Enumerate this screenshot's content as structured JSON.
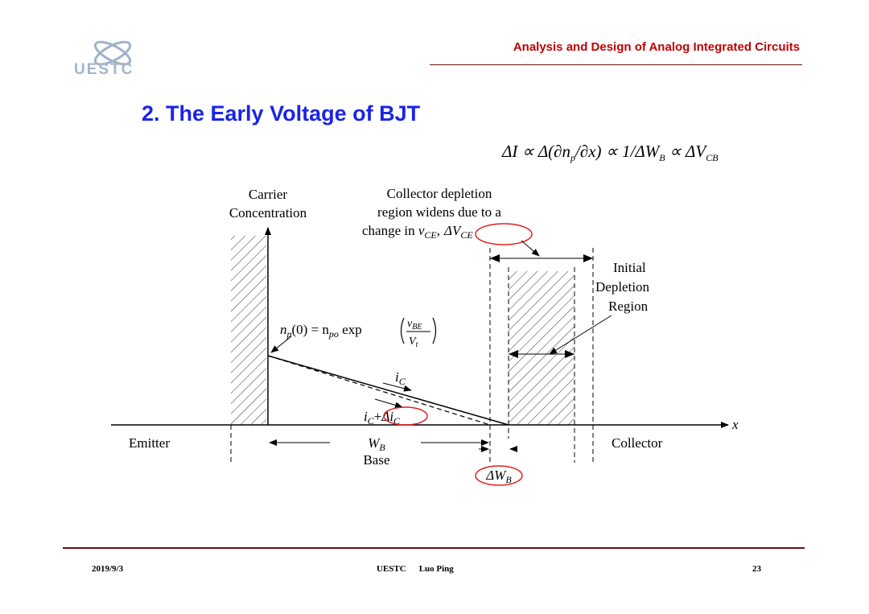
{
  "header": {
    "logo_text": "UESTC",
    "course_title": "Analysis and Design of Analog Integrated Circuits"
  },
  "slide": {
    "heading": "2. The Early Voltage of BJT",
    "formula": {
      "lhs": "ΔI ∝ Δ(∂n",
      "sub_p": "p",
      "mid1": "/∂x) ∝ 1/ΔW",
      "sub_B": "B",
      "mid2": " ∝ ΔV",
      "sub_CB": "CB"
    }
  },
  "diagram": {
    "y_axis_label_1": "Carrier",
    "y_axis_label_2": "Concentration",
    "note_1": "Collector depletion",
    "note_2": "region widens due to a",
    "note_3_prefix": "change in ",
    "note_3_v": "v",
    "note_3_v_sub": "CE",
    "note_3_comma": ",",
    "note_3_dv": "ΔV",
    "note_3_dv_sub": "CE",
    "initial_1": "Initial",
    "initial_2": "Depletion",
    "initial_3": "Region",
    "np0_lhs": "n",
    "np0_lhs_sub": "p",
    "np0_mid": "(0) = n",
    "np0_po_sub": "po",
    "np0_exp": " exp",
    "np0_frac_num": "v",
    "np0_frac_num_sub": "BE",
    "np0_frac_den": "V",
    "np0_frac_den_sub": "t",
    "ic": "i",
    "ic_sub": "C",
    "ic_delta_i": "i",
    "ic_delta_i_sub": "C",
    "ic_delta_plus": "+",
    "ic_delta_d": "Δi",
    "ic_delta_d_sub": "C",
    "emitter": "Emitter",
    "collector": "Collector",
    "x_axis": "x",
    "wb": "W",
    "wb_sub": "B",
    "base": "Base",
    "dwb": "ΔW",
    "dwb_sub": "B"
  },
  "footer": {
    "date": "2019/9/3",
    "org": "UESTC",
    "author": "Luo Ping",
    "page": "23"
  },
  "colors": {
    "title_blue": "#1a24e6",
    "header_red": "#c00000",
    "rule_dark_red": "#6e1010",
    "logo_blue": "#9fb2c8",
    "highlight_ellipse": "#e02020"
  }
}
